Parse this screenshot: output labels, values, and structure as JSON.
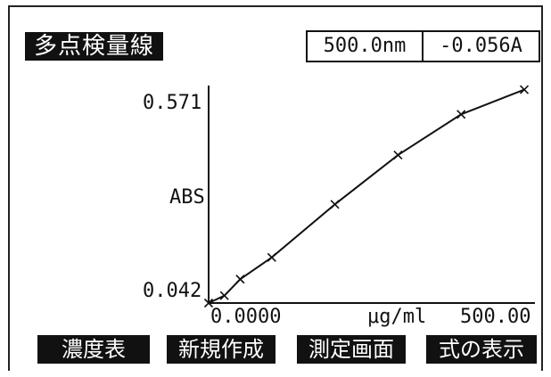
{
  "header": {
    "title": "多点検量線",
    "wavelength": "500.0nm",
    "absorbance": "-0.056A"
  },
  "chart_data": {
    "type": "line",
    "ylabel": "ABS",
    "xlabel": "μg/ml",
    "xlim": [
      0,
      500
    ],
    "ylim": [
      0.042,
      0.571
    ],
    "x_tick_labels": [
      "0.0000",
      "500.00"
    ],
    "y_tick_labels": [
      "0.042",
      "0.571"
    ],
    "marker": "x",
    "series": [
      {
        "x": [
          0,
          25,
          50,
          100,
          200,
          300,
          400,
          500
        ],
        "y": [
          0.042,
          0.06,
          0.1,
          0.153,
          0.282,
          0.402,
          0.501,
          0.561
        ]
      }
    ]
  },
  "function_keys": [
    {
      "label": "濃度表"
    },
    {
      "label": "新規作成"
    },
    {
      "label": "測定画面"
    },
    {
      "label": "式の表示"
    }
  ]
}
